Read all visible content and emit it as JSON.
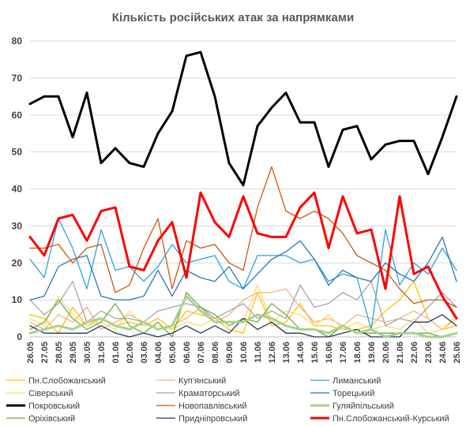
{
  "chart_data": {
    "type": "line",
    "title": "Кількість російських атак за напрямками",
    "ylim": [
      0,
      80
    ],
    "yticks": [
      0,
      10,
      20,
      30,
      40,
      50,
      60,
      70,
      80
    ],
    "grid": true,
    "legend_position": "bottom",
    "x": [
      "26.05",
      "27.05",
      "28.05",
      "29.05",
      "30.05",
      "31.05",
      "01.06",
      "02.06",
      "03.06",
      "04.06",
      "05.06",
      "06.06",
      "07.06",
      "08.06",
      "09.06",
      "10.06",
      "11.06",
      "12.06",
      "13.06",
      "14.06",
      "15.06",
      "16.06",
      "17.06",
      "18.06",
      "19.06",
      "20.06",
      "21.06",
      "22.06",
      "23.06",
      "24.06",
      "25.06"
    ],
    "xticks": [
      "26.05",
      "27.05",
      "28.05",
      "29.05",
      "30.05",
      "31.05",
      "01.06",
      "02.06",
      "03.06",
      "04.06",
      "05.06",
      "06.06",
      "07.06",
      "08.06",
      "09.06",
      "10.06",
      "11.06",
      "12.06",
      "13.06",
      "14.06",
      "15.06",
      "16.06",
      "17.06",
      "18.06",
      "19.06",
      "20.06",
      "21.06",
      "22.06",
      "23.06",
      "24.06",
      "25.06"
    ],
    "series": [
      {
        "name": "Пн.Слобожанський",
        "color": "#ffc000",
        "width": 1.3,
        "values": [
          6,
          5,
          1,
          8,
          3,
          5,
          3,
          4,
          3,
          5,
          2,
          7,
          6,
          5,
          2,
          1,
          12,
          3,
          4,
          9,
          3,
          3,
          2,
          2,
          3,
          7,
          10,
          15,
          5,
          2,
          3
        ]
      },
      {
        "name": "Куп'янський",
        "color": "#f4b183",
        "width": 1.3,
        "values": [
          4,
          2,
          6,
          4,
          8,
          2,
          4,
          6,
          4,
          2,
          3,
          5,
          8,
          4,
          6,
          10,
          12,
          12,
          13,
          8,
          4,
          5,
          3,
          6,
          5,
          4,
          5,
          7,
          5,
          2,
          5
        ]
      },
      {
        "name": "Лиманський",
        "color": "#2aa3e0",
        "width": 1.3,
        "values": [
          21,
          16,
          32,
          24,
          13,
          29,
          18,
          19,
          15,
          19,
          25,
          20,
          21,
          22,
          15,
          13,
          22,
          22,
          22,
          20,
          21,
          15,
          17,
          16,
          2,
          29,
          14,
          20,
          17,
          24,
          18
        ]
      },
      {
        "name": "Сіверський",
        "color": "#ffd966",
        "width": 1.3,
        "values": [
          5,
          3,
          11,
          6,
          3,
          4,
          2,
          7,
          3,
          3,
          2,
          4,
          3,
          5,
          4,
          4,
          14,
          4,
          7,
          6,
          3,
          6,
          2,
          4,
          2,
          3,
          2,
          5,
          1,
          2,
          6
        ]
      },
      {
        "name": "Краматорський",
        "color": "#a5a5a5",
        "width": 1.3,
        "values": [
          10,
          6,
          9,
          15,
          4,
          7,
          5,
          5,
          4,
          7,
          8,
          9,
          8,
          5,
          7,
          9,
          5,
          7,
          5,
          14,
          8,
          9,
          12,
          10,
          15,
          3,
          5,
          4,
          8,
          12,
          8
        ]
      },
      {
        "name": "Торецький",
        "color": "#2e75b6",
        "width": 1.3,
        "values": [
          10,
          11,
          19,
          21,
          22,
          11,
          10,
          10,
          11,
          18,
          11,
          18,
          16,
          15,
          19,
          13,
          17,
          21,
          23,
          26,
          21,
          14,
          18,
          16,
          15,
          20,
          17,
          15,
          20,
          27,
          15
        ]
      },
      {
        "name": "Покровський",
        "color": "#000000",
        "width": 3,
        "values": [
          63,
          65,
          65,
          54,
          66,
          47,
          51,
          47,
          46,
          55,
          61,
          76,
          77,
          65,
          47,
          41,
          57,
          62,
          66,
          58,
          58,
          46,
          56,
          57,
          48,
          52,
          53,
          53,
          44,
          54,
          65
        ]
      },
      {
        "name": "Новопавлівський",
        "color": "#c55a11",
        "width": 1.3,
        "values": [
          24,
          24,
          25,
          20,
          24,
          25,
          12,
          14,
          24,
          32,
          13,
          26,
          24,
          25,
          20,
          18,
          35,
          46,
          34,
          32,
          34,
          32,
          28,
          22,
          20,
          18,
          13,
          9,
          10,
          10,
          8
        ]
      },
      {
        "name": "Гуляйпільський",
        "color": "#a9d18e",
        "width": 3,
        "values": [
          1,
          2,
          3,
          2,
          4,
          5,
          3,
          2,
          4,
          2,
          3,
          11,
          7,
          4,
          4,
          4,
          6,
          5,
          3,
          2,
          2,
          1,
          3,
          1,
          2,
          0,
          1,
          1,
          0,
          0,
          1
        ]
      },
      {
        "name": "Оріхівський",
        "color": "#70ad47",
        "width": 1.3,
        "values": [
          2,
          4,
          10,
          5,
          2,
          4,
          9,
          3,
          1,
          4,
          0,
          12,
          8,
          6,
          3,
          5,
          4,
          9,
          6,
          2,
          2,
          0,
          3,
          1,
          1,
          1,
          1,
          1,
          1,
          0,
          1
        ]
      },
      {
        "name": "Придніпровський",
        "color": "#203864",
        "width": 1.3,
        "values": [
          3,
          1,
          1,
          1,
          1,
          3,
          1,
          0,
          1,
          0,
          1,
          3,
          1,
          3,
          1,
          5,
          2,
          4,
          1,
          1,
          0,
          0,
          1,
          2,
          0,
          0,
          0,
          4,
          4,
          6,
          3
        ]
      },
      {
        "name": "Пн.Слобожанський-Курський",
        "color": "#ff0000",
        "width": 3,
        "values": [
          27,
          22,
          32,
          33,
          26,
          34,
          35,
          19,
          18,
          26,
          31,
          16,
          39,
          31,
          27,
          38,
          28,
          27,
          27,
          35,
          39,
          24,
          38,
          28,
          29,
          13,
          38,
          17,
          19,
          11,
          5
        ]
      }
    ]
  }
}
